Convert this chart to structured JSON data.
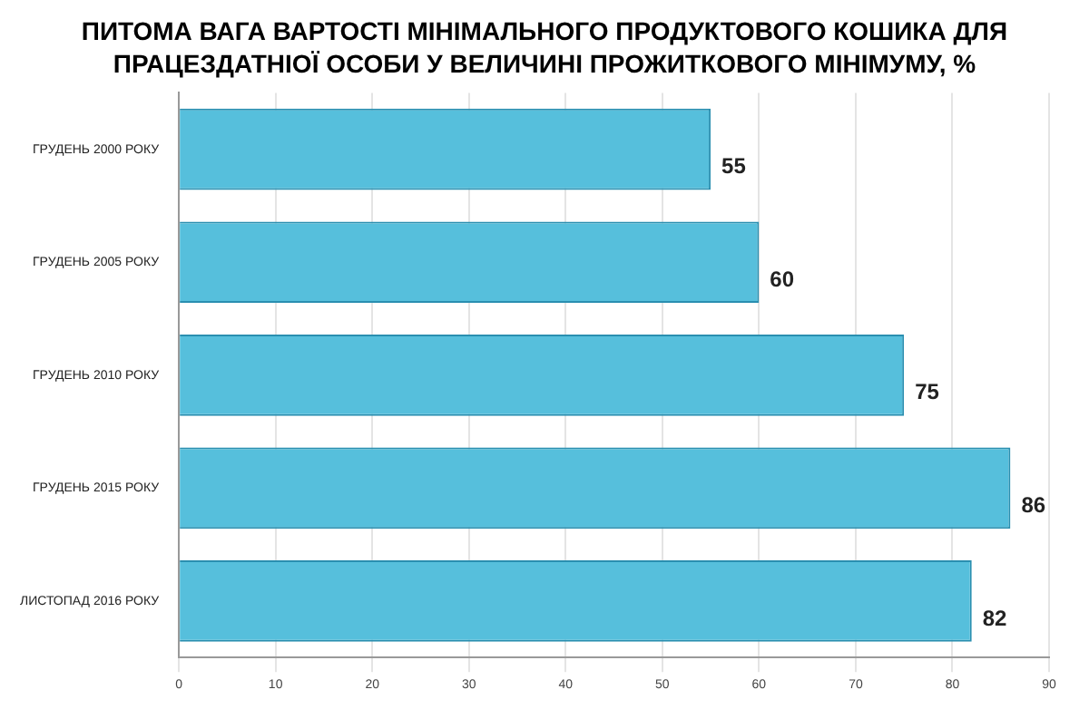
{
  "chart_data": {
    "type": "bar",
    "orientation": "horizontal",
    "title": "ПИТОМА ВАГА ВАРТОСТІ МІНІМАЛЬНОГО ПРОДУКТОВОГО КОШИКА ДЛЯ ПРАЦЕЗДАТНІОЇ ОСОБИ У ВЕЛИЧИНІ ПРОЖИТКОВОГО МІНІМУМУ, %",
    "categories": [
      "ГРУДЕНЬ 2000 РОКУ",
      "ГРУДЕНЬ 2005 РОКУ",
      "ГРУДЕНЬ 2010 РОКУ",
      "ГРУДЕНЬ 2015 РОКУ",
      "ЛИСТОПАД 2016 РОКУ"
    ],
    "values": [
      55,
      60,
      75,
      86,
      82
    ],
    "color": "#56bfdc",
    "xlim": [
      0,
      90
    ],
    "xticks": [
      0,
      10,
      20,
      30,
      40,
      50,
      60,
      70,
      80,
      90
    ],
    "grid": "x",
    "data_labels": true,
    "legend": false
  }
}
